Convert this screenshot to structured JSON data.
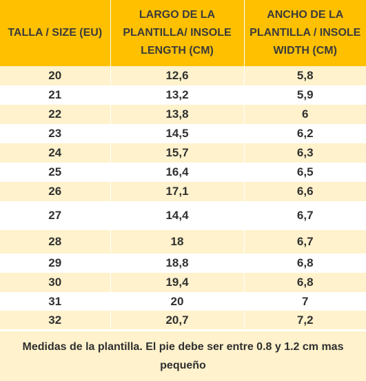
{
  "table": {
    "headers": [
      "TALLA / SIZE (EU)",
      "LARGO DE LA PLANTILLA/ INSOLE LENGTH (CM)",
      "ANCHO DE LA PLANTILLA / INSOLE WIDTH (CM)"
    ],
    "rows": [
      [
        "20",
        "12,6",
        "5,8"
      ],
      [
        "21",
        "13,2",
        "5,9"
      ],
      [
        "22",
        "13,8",
        "6"
      ],
      [
        "23",
        "14,5",
        "6,2"
      ],
      [
        "24",
        "15,7",
        "6,3"
      ],
      [
        "25",
        "16,4",
        "6,5"
      ],
      [
        "26",
        "17,1",
        "6,6"
      ],
      [
        "27",
        "14,4",
        "6,7"
      ],
      [
        "28",
        "18",
        "6,7"
      ],
      [
        "29",
        "18,8",
        "6,8"
      ],
      [
        "30",
        "19,4",
        "6,8"
      ],
      [
        "31",
        "20",
        "7"
      ],
      [
        "32",
        "20,7",
        "7,2"
      ]
    ]
  },
  "note": "Medidas de la plantilla. El pie debe ser entre 0.8 y 1.2 cm mas pequeño",
  "colors": {
    "header_bg": "#ffc000",
    "stripe_bg": "#fff2cc",
    "row_bg": "#ffffff"
  }
}
